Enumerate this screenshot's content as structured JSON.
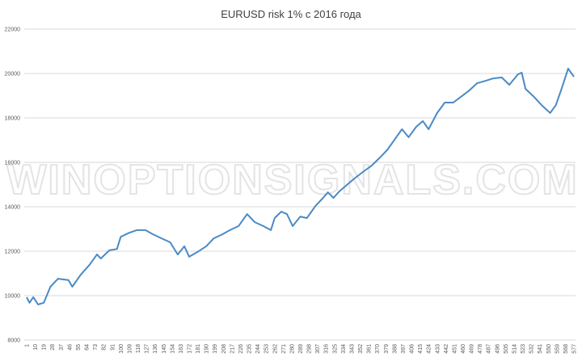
{
  "chart_data": {
    "type": "line",
    "title": "EURUSD risk 1% с 2016 года",
    "xlabel": "",
    "ylabel": "",
    "ylim": [
      8000,
      22000
    ],
    "yticks": [
      8000,
      10000,
      12000,
      14000,
      16000,
      18000,
      20000,
      22000
    ],
    "xlim": [
      1,
      577
    ],
    "xtick_start": 1,
    "xtick_step": 9,
    "grid": true,
    "legend": "none",
    "line_color": "#4a8ac6",
    "watermark": "WINOPTIONSIGNALS.COM",
    "x": [
      1,
      4,
      8,
      13,
      19,
      26,
      34,
      45,
      49,
      58,
      67,
      75,
      79,
      88,
      96,
      100,
      109,
      117,
      126,
      134,
      143,
      152,
      160,
      167,
      172,
      181,
      190,
      198,
      207,
      215,
      224,
      233,
      241,
      250,
      258,
      262,
      269,
      275,
      281,
      289,
      296,
      305,
      313,
      318,
      324,
      330,
      339,
      347,
      356,
      364,
      373,
      381,
      390,
      396,
      403,
      411,
      418,
      424,
      433,
      441,
      450,
      458,
      467,
      475,
      484,
      492,
      501,
      509,
      518,
      522,
      526,
      535,
      543,
      552,
      558,
      564,
      571,
      577
    ],
    "y": [
      9930,
      9680,
      9930,
      9600,
      9680,
      10400,
      10760,
      10700,
      10400,
      10950,
      11380,
      11850,
      11670,
      12040,
      12100,
      12650,
      12830,
      12950,
      12950,
      12760,
      12580,
      12400,
      11850,
      12220,
      11750,
      11970,
      12220,
      12580,
      12760,
      12950,
      13130,
      13670,
      13310,
      13130,
      12950,
      13490,
      13780,
      13670,
      13130,
      13560,
      13490,
      14040,
      14400,
      14650,
      14400,
      14690,
      15020,
      15310,
      15600,
      15850,
      16220,
      16580,
      17130,
      17490,
      17130,
      17600,
      17860,
      17490,
      18220,
      18690,
      18690,
      18950,
      19240,
      19560,
      19670,
      19780,
      19820,
      19490,
      19960,
      20040,
      19310,
      18950,
      18580,
      18220,
      18580,
      19310,
      20220,
      19850
    ]
  }
}
